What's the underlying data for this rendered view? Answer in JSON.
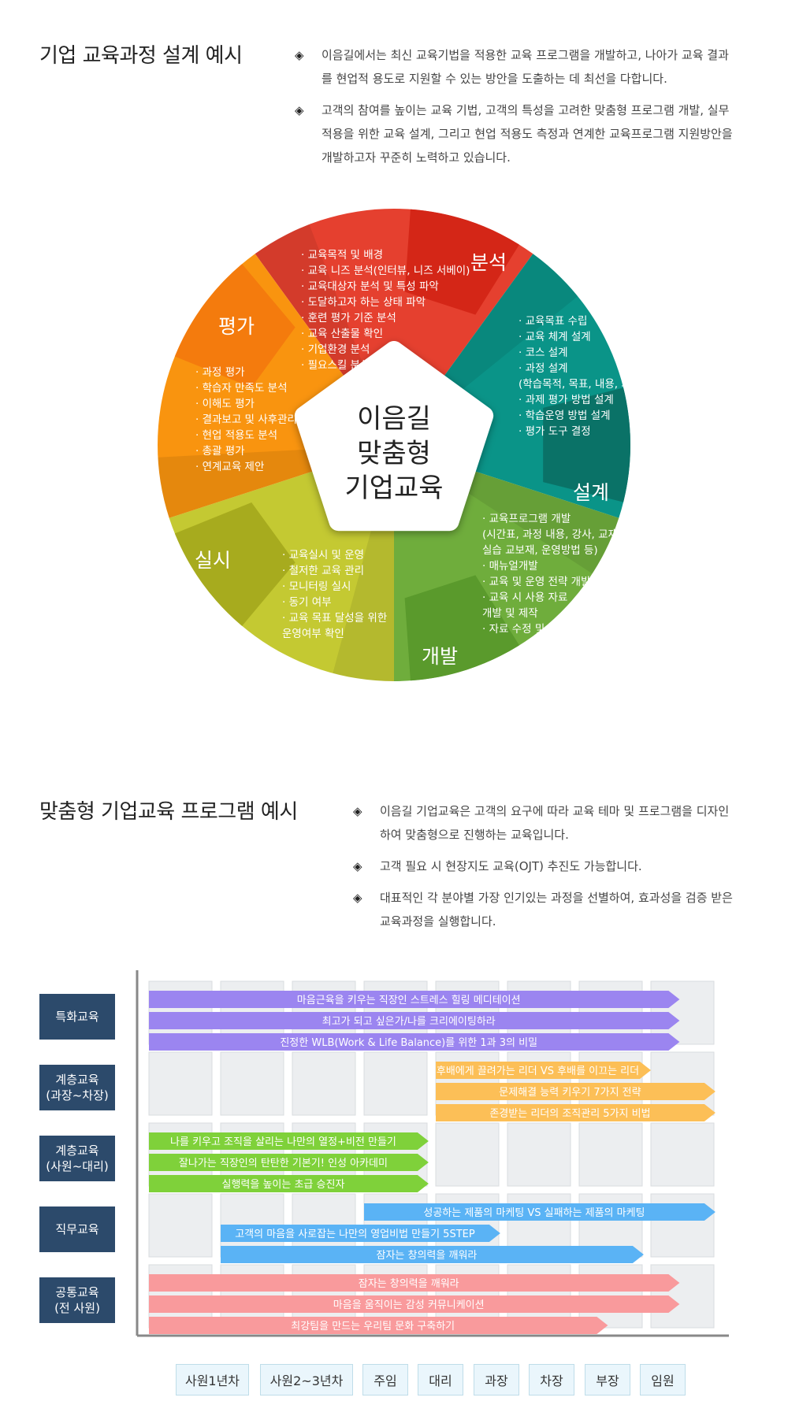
{
  "section1": {
    "title": "기업 교육과정 설계 예시",
    "bullets": [
      {
        "icon": "diamond-bullet-icon",
        "lines": [
          "이음길에서는 최신 교육기법을 적용한 교육 프로그램을 개발하고, 나아가 교육 결과",
          "를 현업적 용도로 지원할 수 있는 방안을 도출하는 데 최선을 다합니다."
        ]
      },
      {
        "icon": "diamond-bullet-icon",
        "lines": [
          "고객의 참여를 높이는 교육 기법,  고객의 특성을 고려한 맞춤형 프로그램 개발, 실무",
          "적용을 위한 교육 설계, 그리고 현업 적용도 측정과 연계한 교육프로그램 지원방안을",
          "개발하고자 꾸준히 노력하고 있습니다."
        ]
      }
    ]
  },
  "wheel": {
    "center_lines": [
      "이음길",
      "맞춤형",
      "기업교육"
    ],
    "segments": [
      {
        "name": "분석",
        "color": "#e5402f",
        "tab_color": "#d42617",
        "items": [
          "· 교육목적 및 배경",
          "· 교육 니즈 분석(인터뷰, 니즈 서베이)",
          "· 교육대상자 분석 및  특성 파악",
          "· 도달하고자 하는 상태 파악",
          "· 훈련 평가 기준 분석",
          "· 교육 산출물 확인",
          "· 기업환경 분석",
          "· 필요스킬 분석"
        ]
      },
      {
        "name": "설계",
        "color": "#0a9488",
        "tab_color": "#0a7267",
        "items": [
          "· 교육목표 수립",
          "· 교육 체계 설계",
          "· 코스 설계",
          "· 과정 설계",
          "(학습목적, 목표, 내용, 과제)",
          "· 과제 평가 방법 설계",
          "· 학습운영 방법 설계",
          "· 평가 도구 결정"
        ]
      },
      {
        "name": "개발",
        "color": "#6fad3c",
        "tab_color": "#5a9a2c",
        "items": [
          "· 교육프로그램 개발",
          "(시간표, 과정 내용, 강사, 교재,",
          "실습 교보재, 운영방법 등)",
          "· 매뉴얼개발",
          "· 교육 및 운영 전략 개발",
          "· 교육 시 사용 자료",
          "  개발 및 제작",
          "· 자료 수정 및 보완"
        ]
      },
      {
        "name": "실시",
        "color": "#c4c932",
        "tab_color": "#a7ab1e",
        "items": [
          "· 교육실시 및 운영",
          "· 철저한 교육 관리",
          "· 모니터링 실시",
          "· 동기 여부",
          "· 교육 목표 달성을 위한",
          "  운영여부 확인"
        ]
      },
      {
        "name": "평가",
        "color": "#f9940f",
        "tab_color": "#f47b0d",
        "items": [
          "· 과정 평가",
          "· 학습자 만족도 분석",
          "· 이해도 평가",
          "· 결과보고 및 사후관리",
          "· 현업 적용도 분석",
          "· 총괄 평가",
          "· 연계교육 제안"
        ]
      }
    ]
  },
  "section2": {
    "title": "맞춤형 기업교육 프로그램 예시",
    "bullets": [
      {
        "icon": "diamond-bullet-icon",
        "lines": [
          "이음길 기업교육은 고객의 요구에 따라 교육 테마 및 프로그램을 디자인",
          "하여 맞춤형으로 진행하는 교육입니다."
        ]
      },
      {
        "icon": "diamond-bullet-icon",
        "lines": [
          "고객 필요 시 현장지도 교육(OJT) 추진도 가능합니다."
        ]
      },
      {
        "icon": "diamond-bullet-icon",
        "lines": [
          "대표적인 각 분야별 가장 인기있는 과정을 선별하여, 효과성을 검증 받은",
          "교육과정을 실행합니다."
        ]
      }
    ]
  },
  "program": {
    "grades": [
      "사원1년차",
      "사원2~3년차",
      "주임",
      "대리",
      "과장",
      "차장",
      "부장",
      "임원"
    ],
    "rows": [
      {
        "label": [
          "특화교육"
        ],
        "color": "#9b85f0",
        "bars": [
          {
            "text": "마음근육을 키우는 직장인 스트레스 힐링 메디테이션",
            "start": 0,
            "end": 7.4
          },
          {
            "text": "최고가 되고 싶은가/나를 크리에이팅하라",
            "start": 0,
            "end": 7.4
          },
          {
            "text": "진정한 WLB(Work & Life Balance)를 위한 1과 3의 비밀",
            "start": 0,
            "end": 7.4
          }
        ]
      },
      {
        "label": [
          "계층교육",
          "(과장~차장)"
        ],
        "color": "#fcbf57",
        "bars": [
          {
            "text": "후배에게 끌려가는 리더 VS 후배를 이끄는 리더",
            "start": 4,
            "end": 7.0
          },
          {
            "text": "문제해결 능력 키우기 7가지 전략",
            "start": 4,
            "end": 7.9
          },
          {
            "text": "존경받는 리더의 조직관리 5가지 비법",
            "start": 4,
            "end": 7.9
          }
        ]
      },
      {
        "label": [
          "계층교육",
          "(사원~대리)"
        ],
        "color": "#7fd13a",
        "bars": [
          {
            "text": "나를 키우고 조직을 살리는 나만의 열정+비전 만들기",
            "start": 0,
            "end": 3.9
          },
          {
            "text": "잘나가는 직장인의 탄탄한 기본기! 인성 아카데미",
            "start": 0,
            "end": 3.9
          },
          {
            "text": "실행력을 높이는 초급 승진자",
            "start": 0,
            "end": 3.9
          }
        ]
      },
      {
        "label": [
          "직무교육"
        ],
        "color": "#5ab3f5",
        "bars": [
          {
            "text": "성공하는 제품의 마케팅 VS 실패하는 제품의 마케팅",
            "start": 3,
            "end": 7.9
          },
          {
            "text": "고객의 마음을 사로잡는 나만의 영업비법 만들기 5STEP",
            "start": 1,
            "end": 4.9
          },
          {
            "text": "잠자는 창의력을 깨워라",
            "start": 1,
            "end": 6.9
          }
        ]
      },
      {
        "label": [
          "공통교육",
          "(전 사원)"
        ],
        "color": "#f99a9c",
        "bars": [
          {
            "text": "잠자는 창의력을 깨워라",
            "start": 0,
            "end": 7.4
          },
          {
            "text": "마음을 움직이는 감성 커뮤니케이션",
            "start": 0,
            "end": 7.4
          },
          {
            "text": "최강팀을 만드는 우리팀 문화 구축하기",
            "start": 0,
            "end": 6.4
          }
        ]
      }
    ]
  },
  "colors": {
    "label_box": "#2c4a6b",
    "cell_bg": "#eceef0",
    "axis": "#888888"
  }
}
